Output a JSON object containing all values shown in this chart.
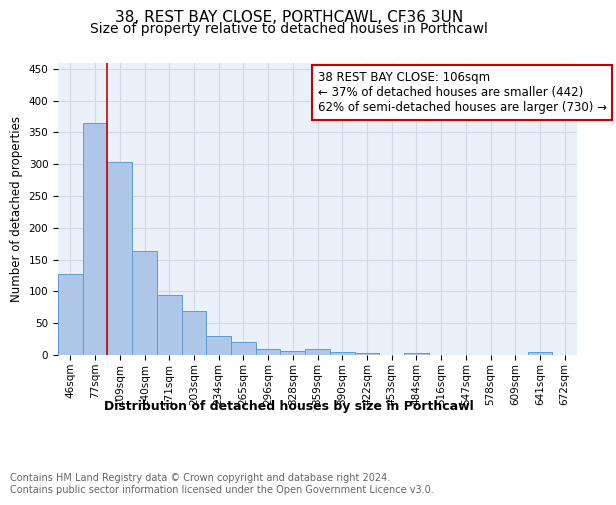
{
  "title1": "38, REST BAY CLOSE, PORTHCAWL, CF36 3UN",
  "title2": "Size of property relative to detached houses in Porthcawl",
  "xlabel": "Distribution of detached houses by size in Porthcawl",
  "ylabel": "Number of detached properties",
  "bar_labels": [
    "46sqm",
    "77sqm",
    "109sqm",
    "140sqm",
    "171sqm",
    "203sqm",
    "234sqm",
    "265sqm",
    "296sqm",
    "328sqm",
    "359sqm",
    "390sqm",
    "422sqm",
    "453sqm",
    "484sqm",
    "516sqm",
    "547sqm",
    "578sqm",
    "609sqm",
    "641sqm",
    "672sqm"
  ],
  "bar_values": [
    128,
    365,
    303,
    163,
    94,
    69,
    30,
    20,
    10,
    7,
    9,
    5,
    3,
    0,
    3,
    0,
    0,
    0,
    0,
    5,
    0
  ],
  "bar_color": "#aec6e8",
  "bar_edge_color": "#5b9bd5",
  "grid_color": "#d0d8e8",
  "background_color": "#eaf1fb",
  "vline_x_index": 2,
  "vline_color": "#cc0000",
  "annotation_text": "38 REST BAY CLOSE: 106sqm\n← 37% of detached houses are smaller (442)\n62% of semi-detached houses are larger (730) →",
  "annotation_box_color": "#ffffff",
  "annotation_box_edge": "#cc0000",
  "ylim": [
    0,
    460
  ],
  "yticks": [
    0,
    50,
    100,
    150,
    200,
    250,
    300,
    350,
    400,
    450
  ],
  "footer_text": "Contains HM Land Registry data © Crown copyright and database right 2024.\nContains public sector information licensed under the Open Government Licence v3.0.",
  "title1_fontsize": 11,
  "title2_fontsize": 10,
  "xlabel_fontsize": 9,
  "ylabel_fontsize": 8.5,
  "tick_fontsize": 7.5,
  "annotation_fontsize": 8.5,
  "footer_fontsize": 7
}
